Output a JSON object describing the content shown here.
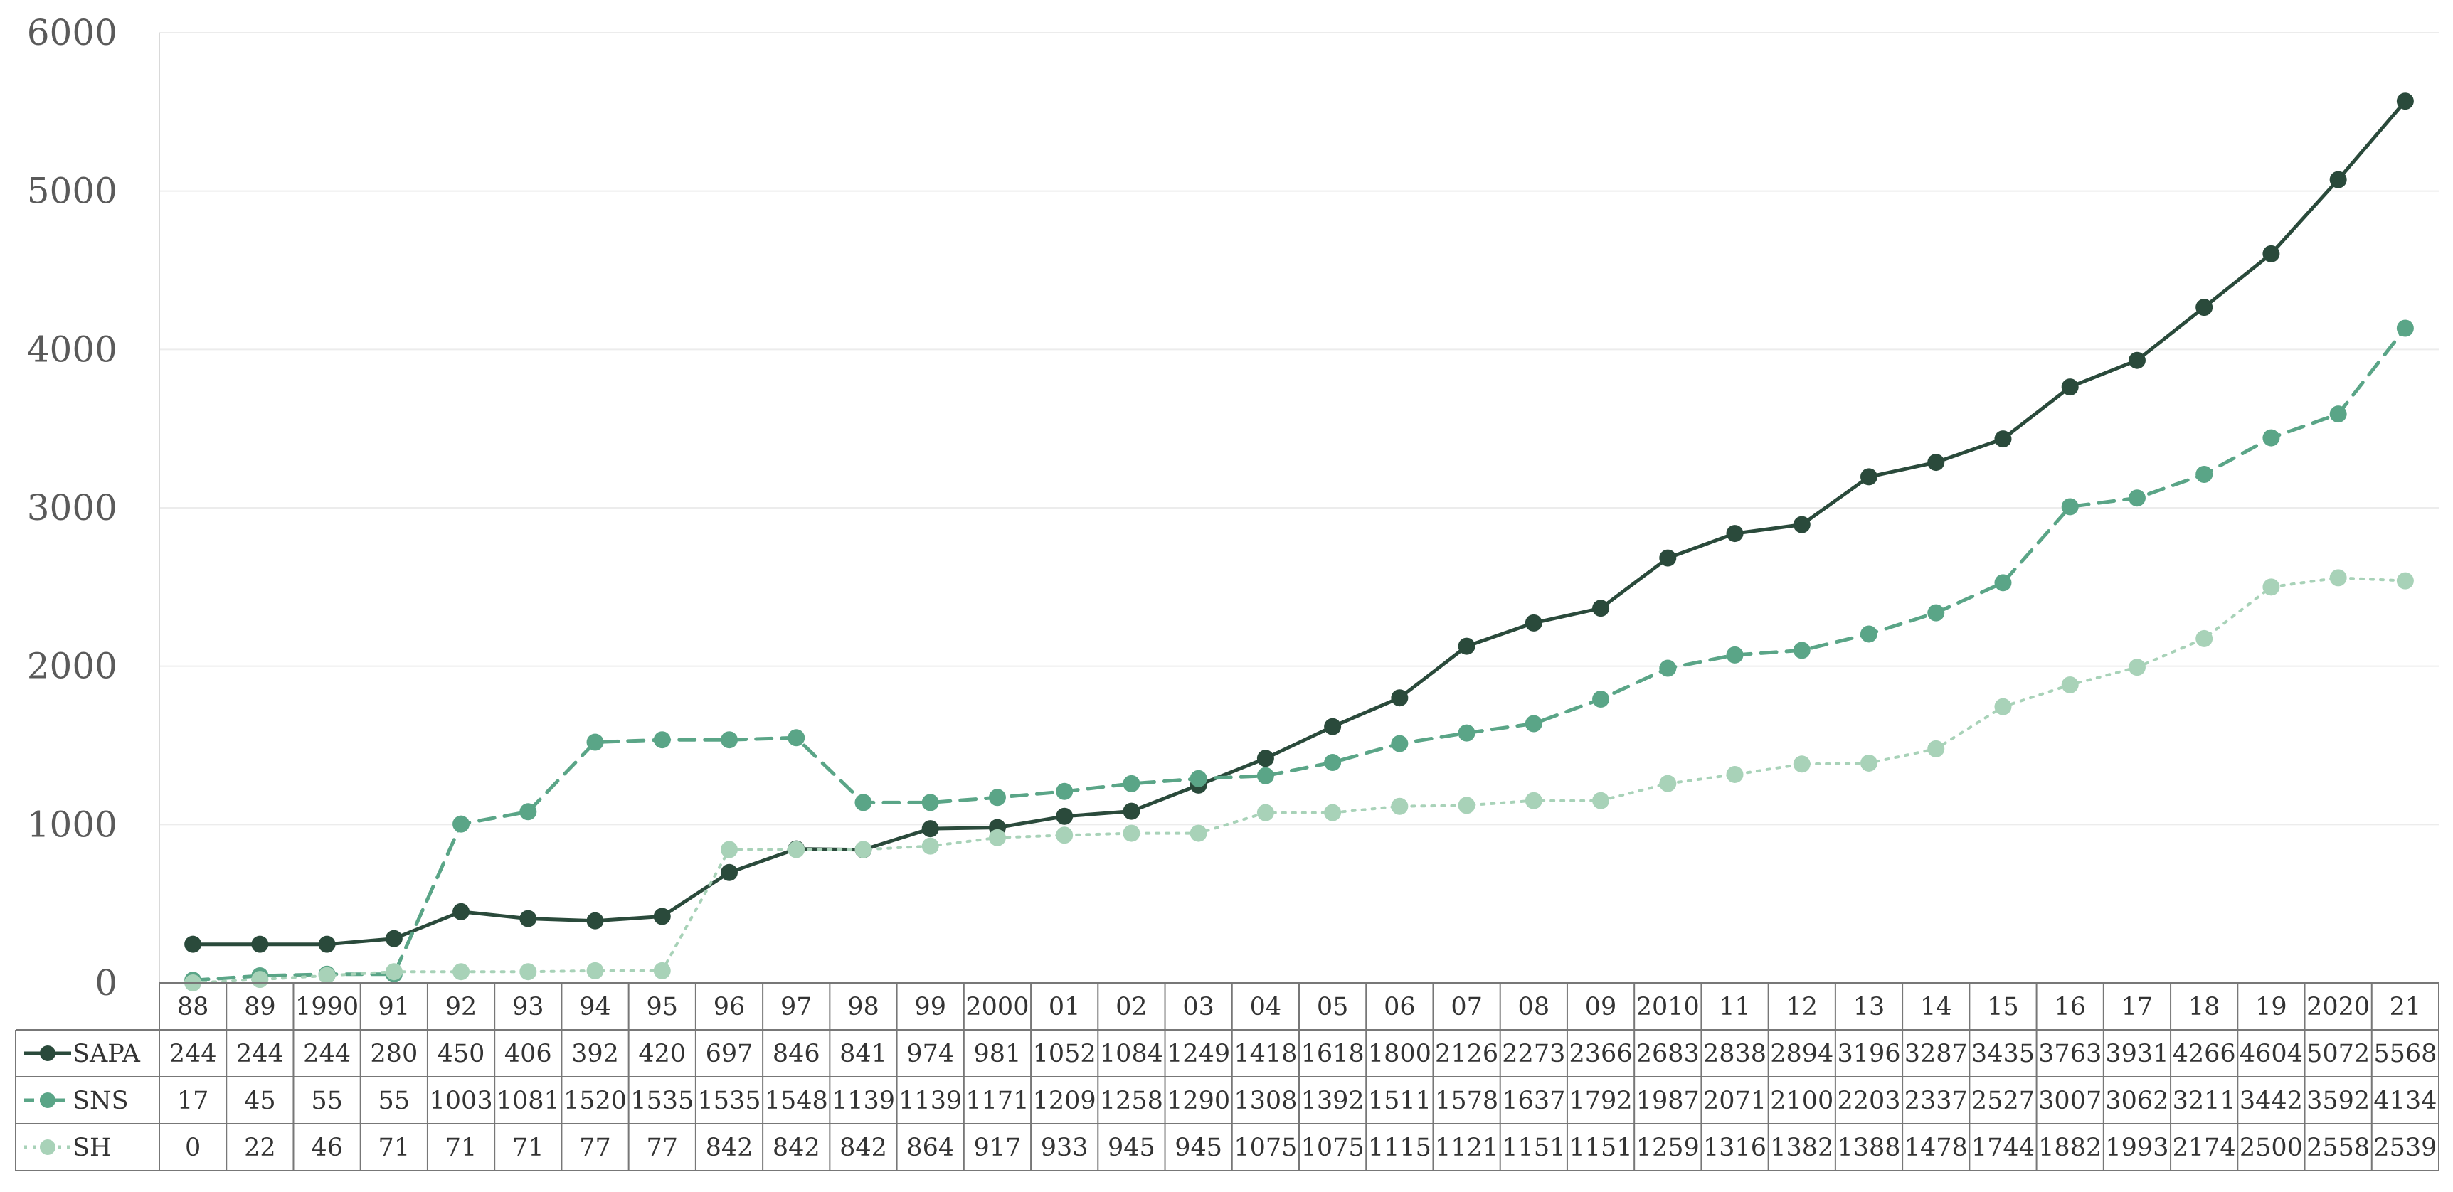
{
  "chart_data": {
    "type": "line",
    "categories": [
      "88",
      "89",
      "1990",
      "91",
      "92",
      "93",
      "94",
      "95",
      "96",
      "97",
      "98",
      "99",
      "2000",
      "01",
      "02",
      "03",
      "04",
      "05",
      "06",
      "07",
      "08",
      "09",
      "2010",
      "11",
      "12",
      "13",
      "14",
      "15",
      "16",
      "17",
      "18",
      "19",
      "2020",
      "21"
    ],
    "ylim": [
      0,
      6000
    ],
    "yticks": [
      "0",
      "1000",
      "2000",
      "3000",
      "4000",
      "5000",
      "6000"
    ],
    "grid": true,
    "legend": "data-table-left",
    "series": [
      {
        "name": "SAPA",
        "color": "#2a4a3b",
        "line_style": "solid",
        "values": [
          244,
          244,
          244,
          280,
          450,
          406,
          392,
          420,
          697,
          846,
          841,
          974,
          981,
          1052,
          1084,
          1249,
          1418,
          1618,
          1800,
          2126,
          2273,
          2366,
          2683,
          2838,
          2894,
          3196,
          3287,
          3435,
          3763,
          3931,
          4266,
          4604,
          5072,
          5568
        ],
        "highlight_indices": [
          26,
          27
        ]
      },
      {
        "name": "SNS",
        "color": "#5aa587",
        "line_style": "dashed",
        "values": [
          17,
          45,
          55,
          55,
          1003,
          1081,
          1520,
          1535,
          1535,
          1548,
          1139,
          1139,
          1171,
          1209,
          1258,
          1290,
          1308,
          1392,
          1511,
          1578,
          1637,
          1792,
          1987,
          2071,
          2100,
          2203,
          2337,
          2527,
          3007,
          3062,
          3211,
          3442,
          3592,
          4134
        ],
        "highlight_indices": []
      },
      {
        "name": "SH",
        "color": "#a8d2b8",
        "line_style": "dotted",
        "values": [
          0,
          22,
          46,
          71,
          71,
          71,
          77,
          77,
          842,
          842,
          842,
          864,
          917,
          933,
          945,
          945,
          1075,
          1075,
          1115,
          1121,
          1151,
          1151,
          1259,
          1316,
          1382,
          1388,
          1478,
          1744,
          1882,
          1993,
          2174,
          2500,
          2558,
          2539
        ],
        "highlight_indices": [
          26
        ]
      }
    ],
    "highlight_color": "#e8151c"
  }
}
